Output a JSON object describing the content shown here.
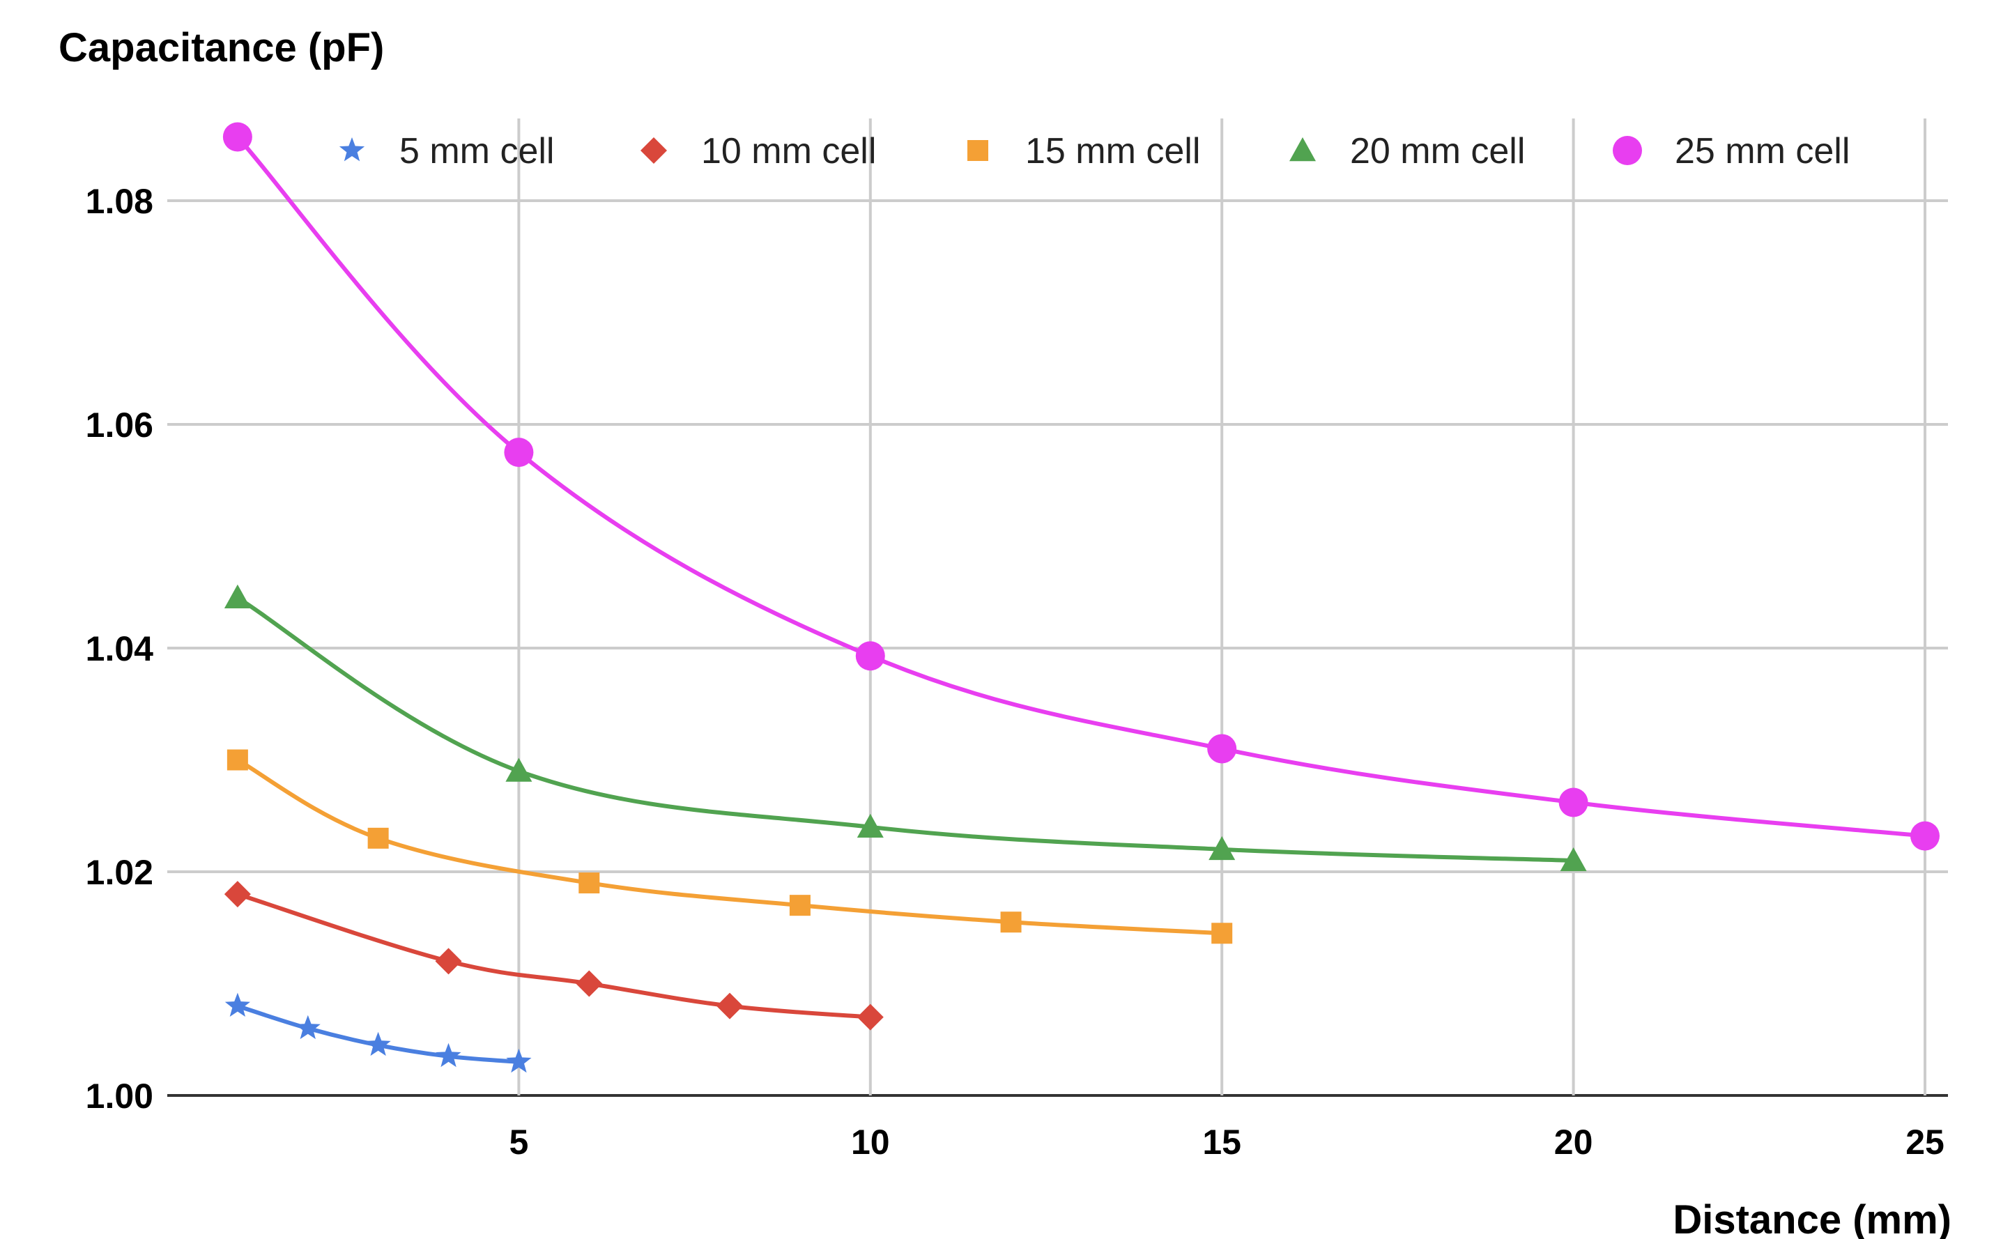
{
  "chart_data": {
    "type": "line",
    "ylabel": "Capacitance (pF)",
    "xlabel": "Distance (mm)",
    "xlim": [
      0,
      25
    ],
    "ylim": [
      1.0,
      1.09
    ],
    "x_ticks": [
      "5",
      "10",
      "15",
      "20",
      "25"
    ],
    "y_ticks": [
      "1.00",
      "1.02",
      "1.04",
      "1.06",
      "1.08"
    ],
    "grid": true,
    "legend_position": "top",
    "series": [
      {
        "name": "5 mm cell",
        "marker": "star",
        "color": "#4a7fe0",
        "points": [
          [
            1,
            1.008
          ],
          [
            2,
            1.006
          ],
          [
            3,
            1.0045
          ],
          [
            4,
            1.0035
          ],
          [
            5,
            1.003
          ]
        ]
      },
      {
        "name": "10 mm cell",
        "marker": "diamond",
        "color": "#d9473b",
        "points": [
          [
            1,
            1.018
          ],
          [
            4,
            1.012
          ],
          [
            6,
            1.01
          ],
          [
            8,
            1.008
          ],
          [
            10,
            1.007
          ]
        ]
      },
      {
        "name": "15 mm cell",
        "marker": "square",
        "color": "#f4a035",
        "points": [
          [
            1,
            1.03
          ],
          [
            3,
            1.023
          ],
          [
            6,
            1.019
          ],
          [
            9,
            1.017
          ],
          [
            12,
            1.0155
          ],
          [
            15,
            1.0145
          ]
        ]
      },
      {
        "name": "20 mm cell",
        "marker": "triangle",
        "color": "#51a350",
        "points": [
          [
            1,
            1.0445
          ],
          [
            5,
            1.029
          ],
          [
            10,
            1.024
          ],
          [
            15,
            1.022
          ],
          [
            20,
            1.021
          ]
        ]
      },
      {
        "name": "25 mm cell",
        "marker": "circle",
        "color": "#e83ef0",
        "points": [
          [
            1,
            1.0857
          ],
          [
            5,
            1.0575
          ],
          [
            10,
            1.0393
          ],
          [
            15,
            1.031
          ],
          [
            20,
            1.0262
          ],
          [
            25,
            1.0232
          ]
        ]
      }
    ]
  }
}
